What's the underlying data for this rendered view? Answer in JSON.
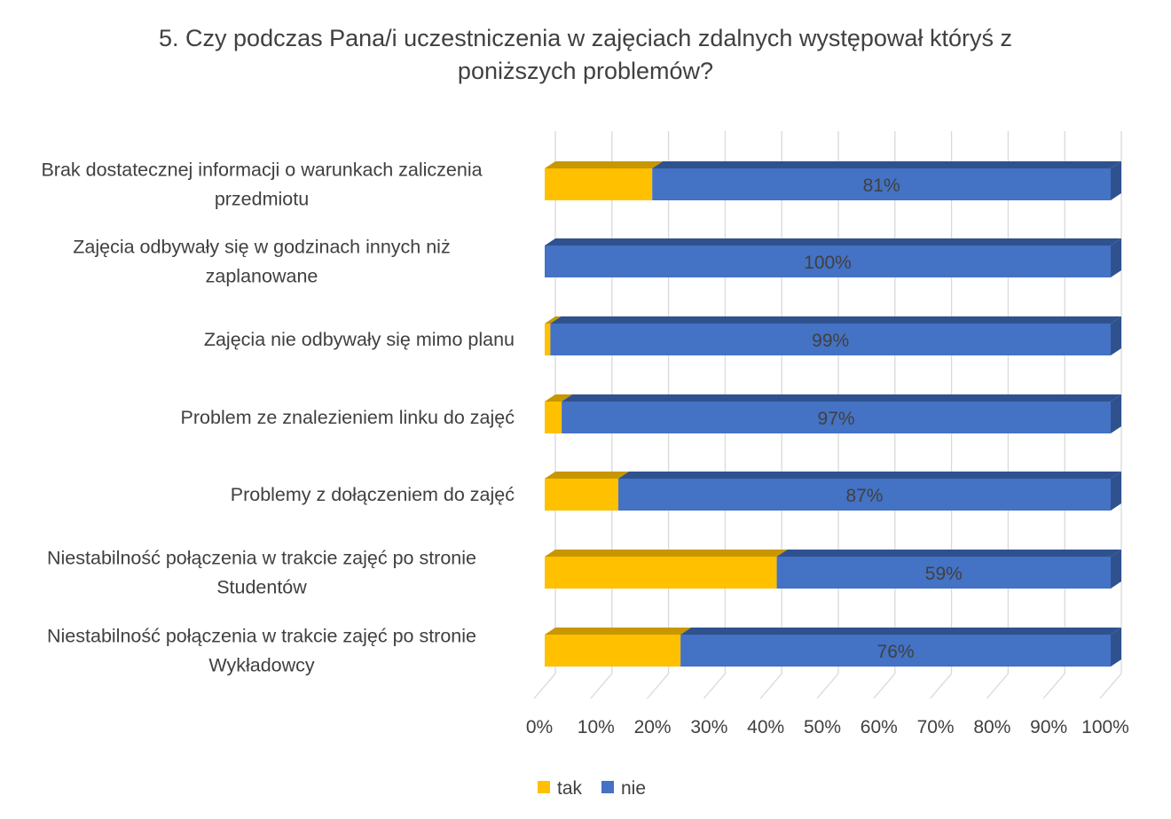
{
  "chart_data": {
    "type": "bar",
    "orientation": "horizontal",
    "stacked": "percent",
    "three_d": true,
    "title_lines": [
      "5. Czy podczas Pana/i uczestniczenia w zajęciach zdalnych występował któryś z",
      "poniższych problemów?"
    ],
    "categories": [
      [
        "Brak dostatecznej informacji o warunkach zaliczenia",
        "przedmiotu"
      ],
      [
        "Zajęcia odbywały się w godzinach innych niż",
        "zaplanowane"
      ],
      [
        "Zajęcia nie odbywały się mimo planu"
      ],
      [
        "Problem ze znalezieniem linku do zajęć"
      ],
      [
        "Problemy z dołączeniem do zajęć"
      ],
      [
        "Niestabilność połączenia w trakcie zajęć po stronie",
        "Studentów"
      ],
      [
        "Niestabilność połączenia w trakcie zajęć po stronie",
        "Wykładowcy"
      ]
    ],
    "series": [
      {
        "name": "tak",
        "color": "#FFC000",
        "side_color": "#C89700",
        "values": [
          19,
          0,
          1,
          3,
          13,
          41,
          24
        ]
      },
      {
        "name": "nie",
        "color": "#4472C4",
        "side_color": "#2F528F",
        "values": [
          81,
          100,
          99,
          97,
          87,
          59,
          76
        ]
      }
    ],
    "data_labels": [
      "81%",
      "100%",
      "99%",
      "97%",
      "87%",
      "59%",
      "76%"
    ],
    "x_ticks": [
      "0%",
      "10%",
      "20%",
      "30%",
      "40%",
      "50%",
      "60%",
      "70%",
      "80%",
      "90%",
      "100%"
    ],
    "xlim": [
      0,
      100
    ],
    "grid": true,
    "legend_position": "bottom"
  }
}
